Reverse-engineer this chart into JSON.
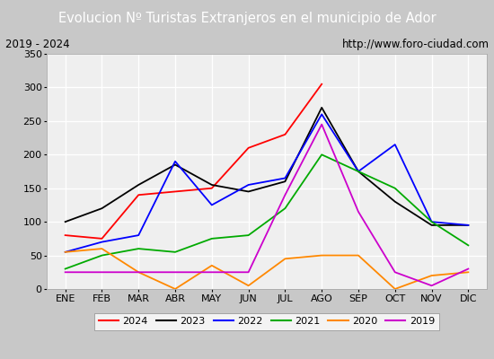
{
  "title": "Evolucion Nº Turistas Extranjeros en el municipio de Ador",
  "subtitle_left": "2019 - 2024",
  "subtitle_right": "http://www.foro-ciudad.com",
  "months": [
    "ENE",
    "FEB",
    "MAR",
    "ABR",
    "MAY",
    "JUN",
    "JUL",
    "AGO",
    "SEP",
    "OCT",
    "NOV",
    "DIC"
  ],
  "series": {
    "2024": {
      "color": "#ff0000",
      "data": [
        80,
        75,
        140,
        145,
        150,
        210,
        230,
        305,
        null,
        null,
        null,
        null
      ]
    },
    "2023": {
      "color": "#000000",
      "data": [
        100,
        120,
        155,
        185,
        155,
        145,
        160,
        270,
        175,
        130,
        95,
        95
      ]
    },
    "2022": {
      "color": "#0000ff",
      "data": [
        55,
        70,
        80,
        190,
        125,
        155,
        165,
        260,
        175,
        215,
        100,
        95
      ]
    },
    "2021": {
      "color": "#00aa00",
      "data": [
        30,
        50,
        60,
        55,
        75,
        80,
        120,
        200,
        175,
        150,
        100,
        65
      ]
    },
    "2020": {
      "color": "#ff8800",
      "data": [
        55,
        60,
        25,
        0,
        35,
        5,
        45,
        50,
        50,
        0,
        20,
        25
      ]
    },
    "2019": {
      "color": "#cc00cc",
      "data": [
        25,
        25,
        25,
        25,
        25,
        25,
        140,
        245,
        115,
        25,
        5,
        30
      ]
    }
  },
  "ylim": [
    0,
    350
  ],
  "yticks": [
    0,
    50,
    100,
    150,
    200,
    250,
    300,
    350
  ],
  "title_bg_color": "#4472c4",
  "title_text_color": "white",
  "plot_bg_color": "#efefef",
  "grid_color": "#ffffff",
  "outer_bg_color": "#c8c8c8",
  "subtitle_box_color": "#ffffff",
  "legend_order": [
    "2024",
    "2023",
    "2022",
    "2021",
    "2020",
    "2019"
  ],
  "fig_width": 5.5,
  "fig_height": 4.0,
  "dpi": 100
}
